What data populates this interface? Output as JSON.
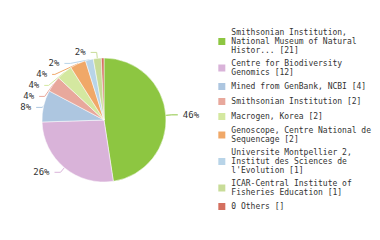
{
  "chart_data": {
    "type": "pie",
    "categories": [
      "Smithsonian Institution,\nNational Museum of Natural\nHistor... [21]",
      "Centre for Biodiversity\nGenomics [12]",
      "Mined from GenBank, NCBI [4]",
      "Smithsonian Institution [2]",
      "Macrogen, Korea [2]",
      "Genoscope, Centre National de\nSequencage [2]",
      "Universite Montpellier 2,\nInstitut des Sciences de\nl'Evolution [1]",
      "ICAR-Central Institute of\nFisheries Education [1]",
      "0 Others []"
    ],
    "values": [
      46,
      26,
      8,
      4,
      4,
      4,
      2,
      2,
      0.66
    ],
    "value_labels": [
      "46%",
      "26%",
      "8%",
      "4%",
      "4%",
      "4%",
      "2%",
      "2%",
      null
    ],
    "colors": [
      "#8dc641",
      "#d9b3d9",
      "#adc6e0",
      "#e8a89c",
      "#d4e8a0",
      "#f0a868",
      "#b8d4e8",
      "#c8dc98",
      "#d47060"
    ],
    "data_labels": true,
    "legend": "right"
  }
}
